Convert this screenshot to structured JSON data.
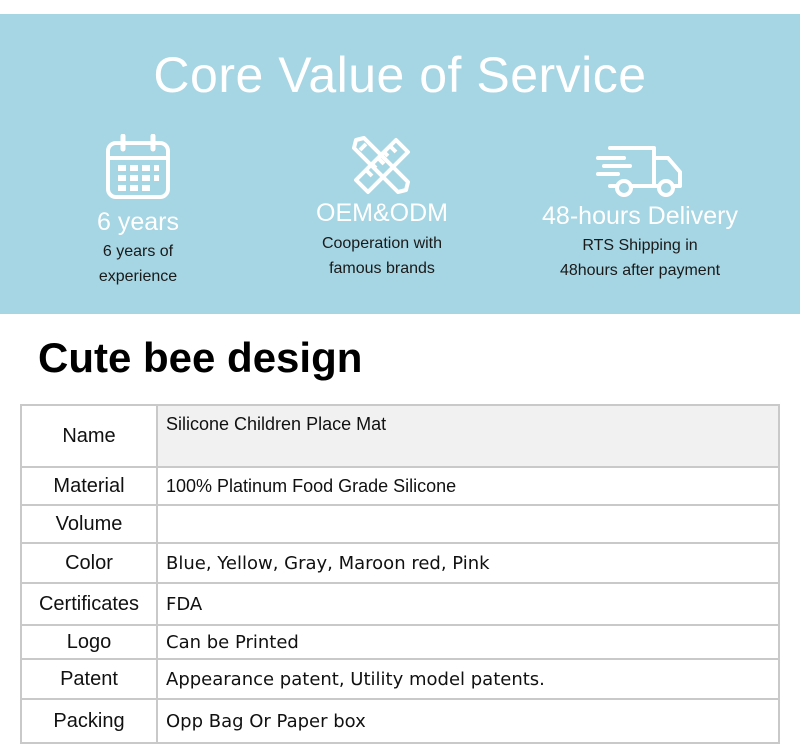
{
  "banner": {
    "title": "Core Value of Service",
    "features": [
      {
        "icon": "calendar-icon",
        "title": "6 years",
        "desc_line1": "6 years of",
        "desc_line2": "experience"
      },
      {
        "icon": "pencil-ruler-icon",
        "title": "OEM&ODM",
        "desc_line1": "Cooperation with",
        "desc_line2": "famous brands"
      },
      {
        "icon": "delivery-truck-icon",
        "title": "48-hours Delivery",
        "desc_line1": "RTS Shipping in",
        "desc_line2": "48hours after payment"
      }
    ],
    "colors": {
      "background": "#a6d5e3",
      "title": "#ffffff"
    }
  },
  "section": {
    "heading": "Cute bee design"
  },
  "spec_table": {
    "rows": [
      {
        "label": "Name",
        "value": "Silicone Children Place Mat"
      },
      {
        "label": "Material",
        "value": "100% Platinum Food Grade Silicone"
      },
      {
        "label": "Volume",
        "value": ""
      },
      {
        "label": "Color",
        "value": "Blue, Yellow, Gray, Maroon red, Pink"
      },
      {
        "label": "Certificates",
        "value": "FDA"
      },
      {
        "label": "Logo",
        "value": "Can be Printed"
      },
      {
        "label": "Patent",
        "value": "Appearance patent, Utility model patents."
      },
      {
        "label": "Packing",
        "value": "Opp Bag Or Paper box"
      }
    ]
  }
}
